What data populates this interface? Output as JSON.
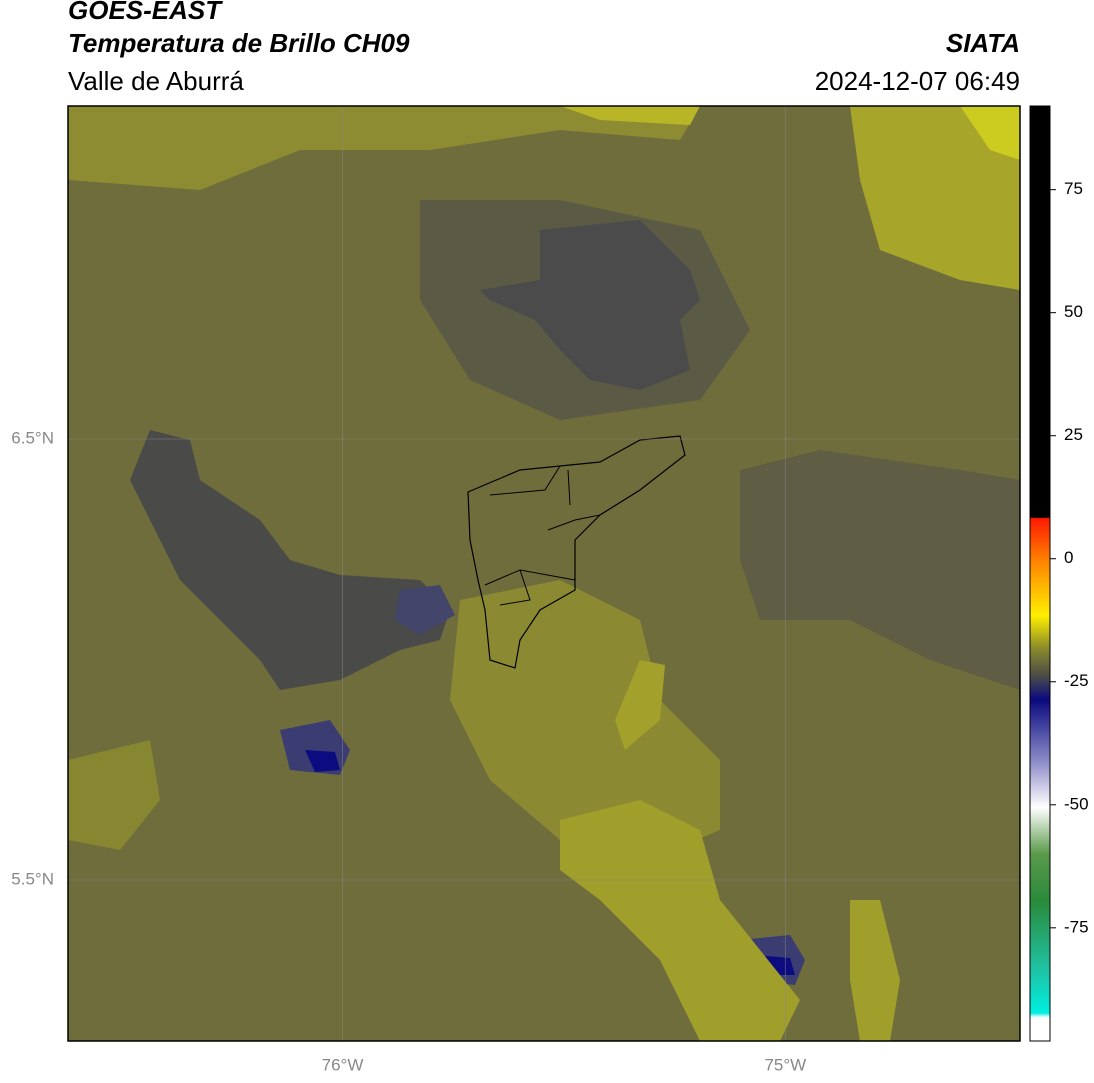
{
  "header": {
    "title": "GOES-EAST",
    "subtitle": "Temperatura de Brillo CH09",
    "region": "Valle de Aburrá",
    "source": "SIATA",
    "datetime": "2024-12-07 06:49"
  },
  "map": {
    "xlim": [
      -76.62,
      -74.47
    ],
    "ylim": [
      5.135,
      7.255
    ],
    "xticks": [
      {
        "value": -76,
        "label": "76°W"
      },
      {
        "value": -75,
        "label": "75°W"
      }
    ],
    "yticks": [
      {
        "value": 6.5,
        "label": "6.5°N"
      },
      {
        "value": 5.5,
        "label": "5.5°N"
      }
    ],
    "grid": true
  },
  "colorbar": {
    "lim": [
      -98,
      92
    ],
    "ticks": [
      75,
      50,
      25,
      0,
      -25,
      -50,
      -75
    ]
  }
}
